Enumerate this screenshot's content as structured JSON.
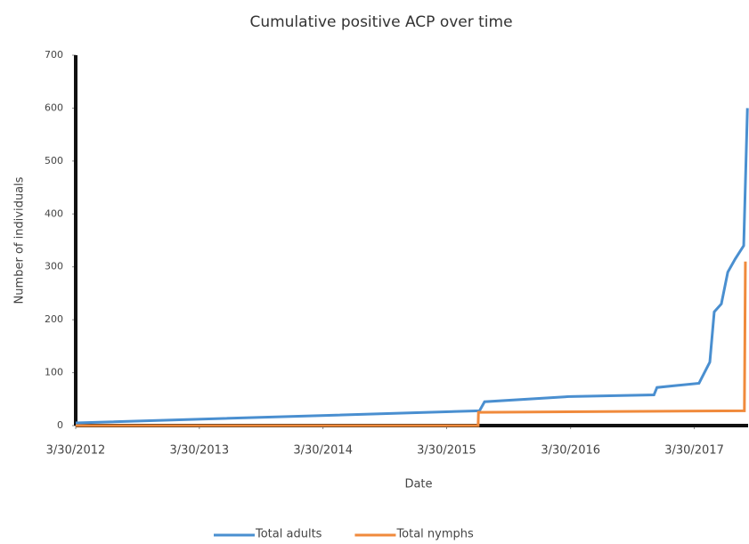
{
  "chart_data": {
    "type": "line",
    "title": "Cumulative positive ACP over time",
    "x_label": "Date",
    "y_label": "Number of individuals",
    "xlim": [
      "3/30/2012",
      "9/5/2017"
    ],
    "xticks": [
      "3/30/2012",
      "3/30/2013",
      "3/30/2014",
      "3/30/2015",
      "3/30/2016",
      "3/30/2017"
    ],
    "ylim": [
      0,
      700
    ],
    "yticks": [
      0,
      100,
      200,
      300,
      400,
      500,
      600,
      700
    ],
    "grid": false,
    "legend": "bottom",
    "series": [
      {
        "name": "Total adults",
        "color": "#4a8fd0",
        "x": [
          "3/30/2012",
          "7/5/2015",
          "7/20/2015",
          "3/30/2016",
          "12/1/2016",
          "12/10/2016",
          "4/13/2017",
          "5/15/2017",
          "5/28/2017",
          "6/18/2017",
          "7/7/2017",
          "7/29/2017",
          "8/23/2017",
          "9/3/2017"
        ],
        "values": [
          5,
          28,
          45,
          55,
          58,
          72,
          80,
          120,
          215,
          230,
          290,
          315,
          340,
          600
        ]
      },
      {
        "name": "Total nymphs",
        "color": "#f08a3c",
        "x": [
          "3/30/2012",
          "7/1/2015",
          "7/2/2015",
          "8/25/2017",
          "8/28/2017"
        ],
        "values": [
          0,
          0,
          25,
          28,
          310
        ]
      }
    ]
  }
}
